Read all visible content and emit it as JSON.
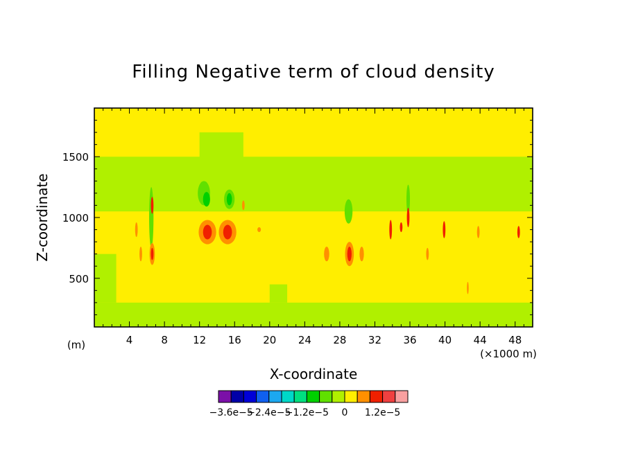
{
  "chart_data": {
    "type": "heatmap",
    "title": "Filling Negative term of cloud density",
    "xlabel": "X-coordinate",
    "ylabel": "Z-coordinate",
    "x_unit_left": "(m)",
    "x_unit_right": "(×1000 m)",
    "xlim": [
      0,
      50
    ],
    "ylim": [
      100,
      1900
    ],
    "x_ticks": [
      {
        "value": 4,
        "label": "4"
      },
      {
        "value": 8,
        "label": "8"
      },
      {
        "value": 12,
        "label": "12"
      },
      {
        "value": 16,
        "label": "16"
      },
      {
        "value": 20,
        "label": "20"
      },
      {
        "value": 24,
        "label": "24"
      },
      {
        "value": 28,
        "label": "28"
      },
      {
        "value": 32,
        "label": "32"
      },
      {
        "value": 36,
        "label": "36"
      },
      {
        "value": 40,
        "label": "40"
      },
      {
        "value": 44,
        "label": "44"
      },
      {
        "value": 48,
        "label": "48"
      }
    ],
    "y_ticks": [
      {
        "value": 500,
        "label": "500"
      },
      {
        "value": 1000,
        "label": "1000"
      },
      {
        "value": 1500,
        "label": "1500"
      }
    ],
    "colorbar": {
      "colors": [
        "#7b10a8",
        "#0000a8",
        "#0000d8",
        "#1060f0",
        "#1ca8f0",
        "#00d8c8",
        "#00e080",
        "#00d000",
        "#60e000",
        "#b0f000",
        "#ffee00",
        "#ff9000",
        "#f02000",
        "#f04040",
        "#f8a0a0"
      ],
      "labels": [
        {
          "text": "−3.6e−5",
          "slot": 1
        },
        {
          "text": "−2.4e−5",
          "slot": 4
        },
        {
          "text": "−1.2e−5",
          "slot": 7
        },
        {
          "text": "0",
          "slot": 10
        },
        {
          "text": "1.2e−5",
          "slot": 13
        }
      ]
    },
    "background_level": "#ffee00",
    "bands": [
      {
        "x0": 0,
        "x1": 50,
        "y0": 1050,
        "y1": 1500,
        "color": "#b0f000"
      },
      {
        "x0": 0,
        "x1": 50,
        "y0": 100,
        "y1": 300,
        "color": "#b0f000"
      },
      {
        "x0": 0,
        "x1": 2.5,
        "y0": 300,
        "y1": 700,
        "color": "#b0f000"
      },
      {
        "x0": 12,
        "x1": 17,
        "y0": 1050,
        "y1": 1700,
        "color": "#b0f000"
      },
      {
        "x0": 20,
        "x1": 22,
        "y0": 300,
        "y1": 450,
        "color": "#b0f000"
      }
    ],
    "features": [
      {
        "x": 12.5,
        "y": 1200,
        "rx": 0.7,
        "ry": 100,
        "color": "#60e000"
      },
      {
        "x": 12.8,
        "y": 1150,
        "rx": 0.4,
        "ry": 60,
        "color": "#00d000"
      },
      {
        "x": 15.4,
        "y": 1150,
        "rx": 0.6,
        "ry": 80,
        "color": "#60e000"
      },
      {
        "x": 15.4,
        "y": 1150,
        "rx": 0.3,
        "ry": 50,
        "color": "#00d000"
      },
      {
        "x": 6.5,
        "y": 1000,
        "rx": 0.25,
        "ry": 250,
        "color": "#60e000"
      },
      {
        "x": 29.0,
        "y": 1050,
        "rx": 0.45,
        "ry": 100,
        "color": "#60e000"
      },
      {
        "x": 35.8,
        "y": 1150,
        "rx": 0.2,
        "ry": 120,
        "color": "#60e000"
      },
      {
        "x": 12.9,
        "y": 880,
        "rx": 1.0,
        "ry": 100,
        "color": "#ff9000"
      },
      {
        "x": 12.9,
        "y": 880,
        "rx": 0.5,
        "ry": 60,
        "color": "#f02000"
      },
      {
        "x": 15.2,
        "y": 880,
        "rx": 1.0,
        "ry": 100,
        "color": "#ff9000"
      },
      {
        "x": 15.2,
        "y": 880,
        "rx": 0.5,
        "ry": 60,
        "color": "#f02000"
      },
      {
        "x": 6.6,
        "y": 1100,
        "rx": 0.15,
        "ry": 70,
        "color": "#f02000"
      },
      {
        "x": 6.6,
        "y": 700,
        "rx": 0.3,
        "ry": 90,
        "color": "#ff9000"
      },
      {
        "x": 6.6,
        "y": 700,
        "rx": 0.15,
        "ry": 50,
        "color": "#f02000"
      },
      {
        "x": 4.8,
        "y": 900,
        "rx": 0.15,
        "ry": 60,
        "color": "#ff9000"
      },
      {
        "x": 5.3,
        "y": 700,
        "rx": 0.15,
        "ry": 60,
        "color": "#ff9000"
      },
      {
        "x": 17.0,
        "y": 1100,
        "rx": 0.15,
        "ry": 40,
        "color": "#ff9000"
      },
      {
        "x": 18.8,
        "y": 900,
        "rx": 0.2,
        "ry": 20,
        "color": "#ff9000"
      },
      {
        "x": 26.5,
        "y": 700,
        "rx": 0.3,
        "ry": 60,
        "color": "#ff9000"
      },
      {
        "x": 29.1,
        "y": 700,
        "rx": 0.5,
        "ry": 100,
        "color": "#ff9000"
      },
      {
        "x": 29.1,
        "y": 700,
        "rx": 0.25,
        "ry": 60,
        "color": "#f02000"
      },
      {
        "x": 30.5,
        "y": 700,
        "rx": 0.25,
        "ry": 60,
        "color": "#ff9000"
      },
      {
        "x": 33.8,
        "y": 900,
        "rx": 0.15,
        "ry": 80,
        "color": "#f02000"
      },
      {
        "x": 35.0,
        "y": 920,
        "rx": 0.15,
        "ry": 40,
        "color": "#f02000"
      },
      {
        "x": 35.8,
        "y": 1000,
        "rx": 0.15,
        "ry": 80,
        "color": "#f02000"
      },
      {
        "x": 38.0,
        "y": 700,
        "rx": 0.15,
        "ry": 50,
        "color": "#ff9000"
      },
      {
        "x": 39.9,
        "y": 900,
        "rx": 0.15,
        "ry": 70,
        "color": "#f02000"
      },
      {
        "x": 43.8,
        "y": 880,
        "rx": 0.15,
        "ry": 50,
        "color": "#ff9000"
      },
      {
        "x": 48.4,
        "y": 880,
        "rx": 0.15,
        "ry": 50,
        "color": "#f02000"
      },
      {
        "x": 42.6,
        "y": 420,
        "rx": 0.1,
        "ry": 50,
        "color": "#ff9000"
      }
    ]
  }
}
